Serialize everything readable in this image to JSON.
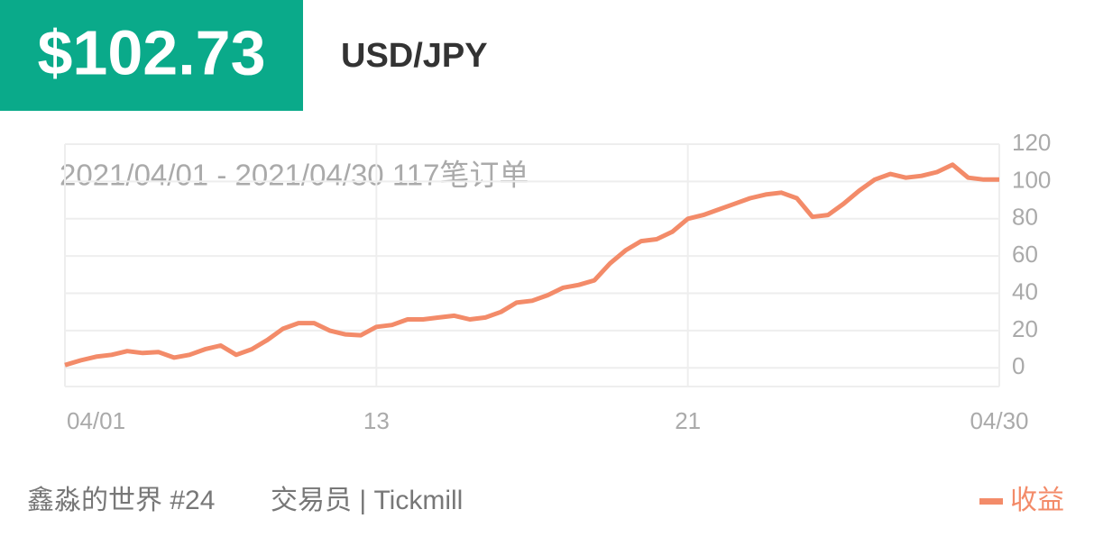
{
  "header": {
    "price": "$102.73",
    "symbol": "USD/JPY"
  },
  "chart_data": {
    "type": "line",
    "subtitle": "2021/04/01 - 2021/04/30  117笔订单",
    "categories": [
      "04/01",
      null,
      null,
      null,
      null,
      null,
      null,
      null,
      null,
      null,
      null,
      null,
      null,
      null,
      null,
      null,
      null,
      null,
      null,
      null,
      "13",
      null,
      null,
      null,
      null,
      null,
      null,
      null,
      null,
      null,
      null,
      null,
      null,
      null,
      null,
      null,
      null,
      null,
      null,
      null,
      "21",
      null,
      null,
      null,
      null,
      null,
      null,
      null,
      null,
      null,
      null,
      null,
      null,
      null,
      null,
      null,
      null,
      null,
      null,
      null,
      "04/30"
    ],
    "series": [
      {
        "name": "收益",
        "color": "#f38b69",
        "values": [
          1.5,
          4,
          6,
          7,
          9,
          8,
          8.5,
          5.5,
          7,
          10,
          12,
          7,
          10,
          15,
          21,
          24,
          24,
          20,
          18,
          17.5,
          22,
          23,
          26,
          26,
          27,
          28,
          26,
          27,
          30,
          35,
          36,
          39,
          43,
          44.5,
          47,
          56,
          63,
          68,
          69,
          73,
          80,
          82,
          85,
          88,
          91,
          93,
          94,
          91,
          81,
          82,
          88,
          95,
          101,
          104,
          102,
          103,
          105,
          109,
          102,
          101,
          101
        ]
      }
    ],
    "ylim": [
      -10,
      120
    ],
    "yticks": [
      0,
      20,
      40,
      60,
      80,
      100,
      120
    ],
    "grid": true,
    "y_axis_side": "right"
  },
  "footer": {
    "account": "鑫淼的世界 #24",
    "trader": "交易员 | Tickmill"
  }
}
